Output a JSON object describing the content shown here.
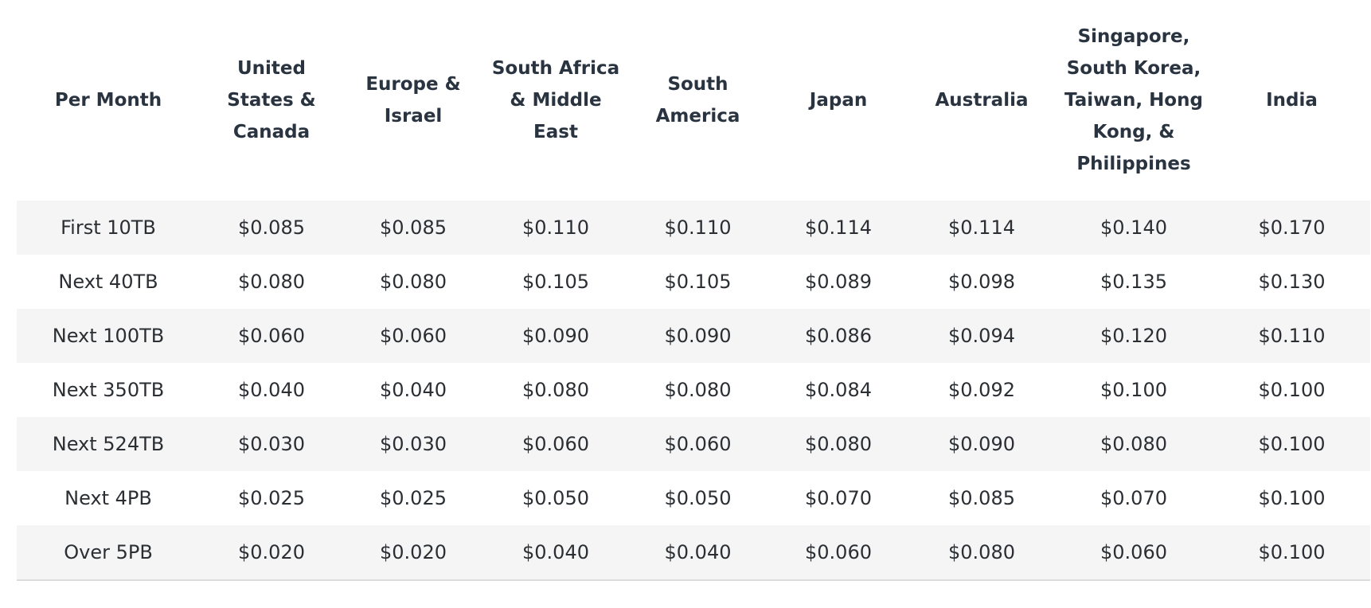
{
  "table": {
    "headers": [
      "Per Month",
      "United States & Canada",
      "Europe & Israel",
      "South Africa & Middle East",
      "South America",
      "Japan",
      "Australia",
      "Singapore, South Korea, Taiwan, Hong Kong, & Philippines",
      "India"
    ],
    "rows": [
      [
        "First 10TB",
        "$0.085",
        "$0.085",
        "$0.110",
        "$0.110",
        "$0.114",
        "$0.114",
        "$0.140",
        "$0.170"
      ],
      [
        "Next 40TB",
        "$0.080",
        "$0.080",
        "$0.105",
        "$0.105",
        "$0.089",
        "$0.098",
        "$0.135",
        "$0.130"
      ],
      [
        "Next 100TB",
        "$0.060",
        "$0.060",
        "$0.090",
        "$0.090",
        "$0.086",
        "$0.094",
        "$0.120",
        "$0.110"
      ],
      [
        "Next 350TB",
        "$0.040",
        "$0.040",
        "$0.080",
        "$0.080",
        "$0.084",
        "$0.092",
        "$0.100",
        "$0.100"
      ],
      [
        "Next 524TB",
        "$0.030",
        "$0.030",
        "$0.060",
        "$0.060",
        "$0.080",
        "$0.090",
        "$0.080",
        "$0.100"
      ],
      [
        "Next 4PB",
        "$0.025",
        "$0.025",
        "$0.050",
        "$0.050",
        "$0.070",
        "$0.085",
        "$0.070",
        "$0.100"
      ],
      [
        "Over 5PB",
        "$0.020",
        "$0.020",
        "$0.040",
        "$0.040",
        "$0.060",
        "$0.080",
        "$0.060",
        "$0.100"
      ]
    ]
  }
}
